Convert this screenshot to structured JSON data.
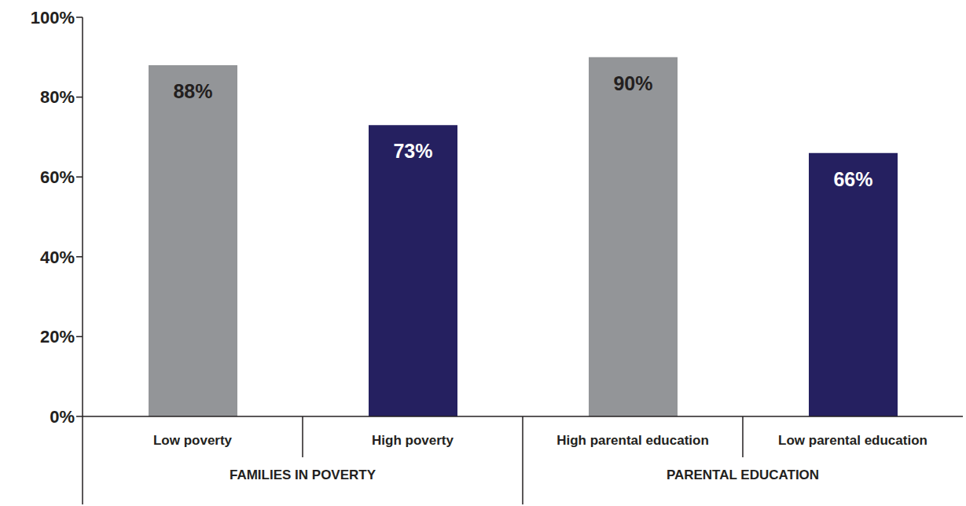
{
  "chart_data": {
    "type": "bar",
    "categories": [
      "Low poverty",
      "High poverty",
      "High parental education",
      "Low parental education"
    ],
    "values": [
      88,
      73,
      90,
      66
    ],
    "value_labels": [
      "88%",
      "73%",
      "90%",
      "66%"
    ],
    "colors": [
      "#939598",
      "#252060",
      "#939598",
      "#252060"
    ],
    "groups": [
      {
        "name": "FAMILIES IN POVERTY",
        "categories": [
          "Low poverty",
          "High poverty"
        ]
      },
      {
        "name": "PARENTAL EDUCATION",
        "categories": [
          "High parental education",
          "Low parental education"
        ]
      }
    ],
    "ylim": [
      0,
      100
    ],
    "yticks": [
      {
        "value": 0,
        "label": "0%"
      },
      {
        "value": 20,
        "label": "20%"
      },
      {
        "value": 40,
        "label": "40%"
      },
      {
        "value": 60,
        "label": "60%"
      },
      {
        "value": 80,
        "label": "80%"
      },
      {
        "value": 100,
        "label": "100%"
      }
    ],
    "data_labels": true,
    "grid": false
  }
}
